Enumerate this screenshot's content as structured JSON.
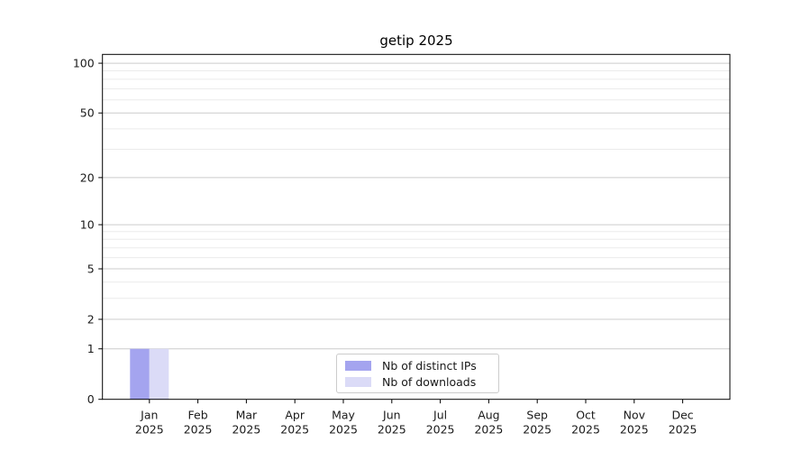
{
  "chart_data": {
    "type": "bar",
    "title": "getip 2025",
    "categories": [
      "Jan",
      "Feb",
      "Mar",
      "Apr",
      "May",
      "Jun",
      "Jul",
      "Aug",
      "Sep",
      "Oct",
      "Nov",
      "Dec"
    ],
    "category_year": "2025",
    "series": [
      {
        "name": "Nb of distinct IPs",
        "color": "#a4a4ef",
        "values": [
          1,
          0,
          0,
          0,
          0,
          0,
          0,
          0,
          0,
          0,
          0,
          0
        ]
      },
      {
        "name": "Nb of downloads",
        "color": "#dbdbf7",
        "values": [
          1,
          0,
          0,
          0,
          0,
          0,
          0,
          0,
          0,
          0,
          0,
          0
        ]
      }
    ],
    "xlabel": "",
    "ylabel": "",
    "yscale": "log1p",
    "ylim": [
      0,
      113
    ],
    "ytick_values": [
      0,
      1,
      2,
      5,
      10,
      20,
      50,
      100
    ],
    "minor_grid_values": [
      3,
      4,
      6,
      7,
      8,
      9,
      30,
      40,
      60,
      70,
      80,
      90
    ],
    "grid": "both",
    "legend_position": "lower center"
  },
  "colors": {
    "spine": "#000000",
    "tick_text": "#1a1a1a",
    "major_grid": "#cccccc",
    "minor_grid": "#ebebeb",
    "background": "#ffffff"
  }
}
